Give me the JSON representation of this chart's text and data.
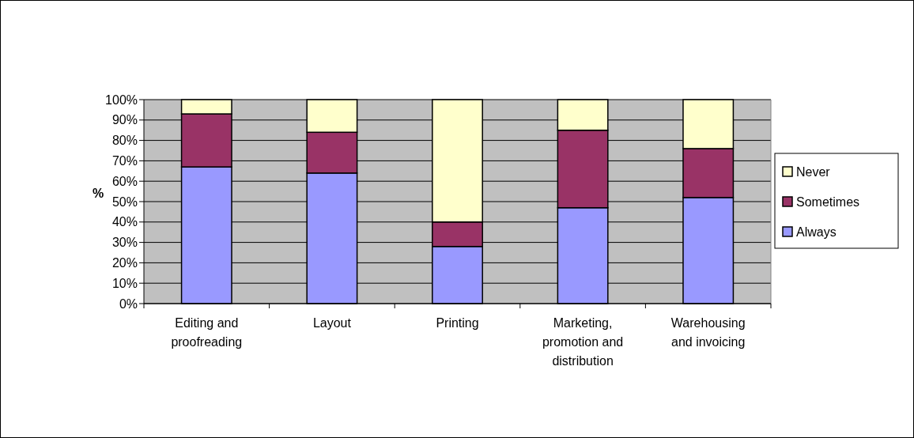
{
  "chart_data": {
    "type": "bar",
    "stacked": true,
    "ylabel": "%",
    "categories": [
      "Editing and proofreading",
      "Layout",
      "Printing",
      "Marketing, promotion and distribution",
      "Warehousing and invoicing"
    ],
    "series": [
      {
        "name": "Always",
        "color": "#9999ff",
        "values": [
          67,
          64,
          28,
          47,
          52
        ]
      },
      {
        "name": "Sometimes",
        "color": "#993366",
        "values": [
          26,
          20,
          12,
          38,
          24
        ]
      },
      {
        "name": "Never",
        "color": "#ffffcc",
        "values": [
          7,
          16,
          60,
          15,
          24
        ]
      }
    ],
    "ylim": [
      0,
      100
    ],
    "yticks": [
      {
        "value": 0,
        "label": "0%"
      },
      {
        "value": 10,
        "label": "10%"
      },
      {
        "value": 20,
        "label": "20%"
      },
      {
        "value": 30,
        "label": "30%"
      },
      {
        "value": 40,
        "label": "40%"
      },
      {
        "value": 50,
        "label": "50%"
      },
      {
        "value": 60,
        "label": "60%"
      },
      {
        "value": 70,
        "label": "70%"
      },
      {
        "value": 80,
        "label": "80%"
      },
      {
        "value": 90,
        "label": "90%"
      },
      {
        "value": 100,
        "label": "100%"
      }
    ],
    "grid": "y",
    "legend": "right"
  }
}
